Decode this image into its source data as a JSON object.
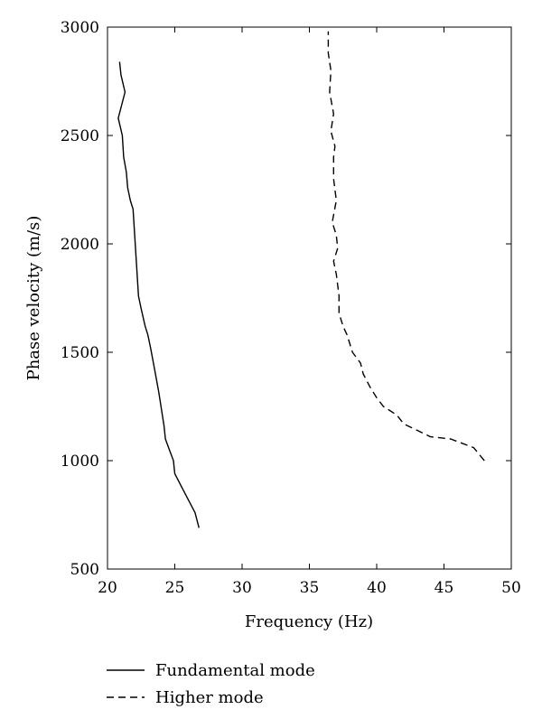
{
  "chart_data": {
    "type": "line",
    "title": "",
    "xlabel": "Frequency (Hz)",
    "ylabel": "Phase velocity (m/s)",
    "xlim": [
      20,
      50
    ],
    "ylim": [
      500,
      3000
    ],
    "xticks": [
      "20",
      "25",
      "30",
      "35",
      "40",
      "45",
      "50"
    ],
    "yticks": [
      "500",
      "1000",
      "1500",
      "2000",
      "2500",
      "3000"
    ],
    "grid": false,
    "legend_position": "bottom",
    "series": [
      {
        "name": "Fundamental mode",
        "style": "solid",
        "color": "#000000",
        "points": [
          [
            26.8,
            690
          ],
          [
            26.5,
            760
          ],
          [
            26.0,
            820
          ],
          [
            25.5,
            880
          ],
          [
            25.0,
            940
          ],
          [
            24.9,
            1000
          ],
          [
            24.6,
            1050
          ],
          [
            24.3,
            1100
          ],
          [
            24.2,
            1160
          ],
          [
            24.0,
            1240
          ],
          [
            23.8,
            1320
          ],
          [
            23.5,
            1420
          ],
          [
            23.2,
            1520
          ],
          [
            23.0,
            1580
          ],
          [
            22.8,
            1620
          ],
          [
            22.5,
            1700
          ],
          [
            22.3,
            1760
          ],
          [
            22.2,
            1860
          ],
          [
            22.1,
            1960
          ],
          [
            22.0,
            2060
          ],
          [
            21.9,
            2160
          ],
          [
            21.7,
            2200
          ],
          [
            21.5,
            2260
          ],
          [
            21.4,
            2330
          ],
          [
            21.2,
            2400
          ],
          [
            21.1,
            2500
          ],
          [
            20.8,
            2580
          ],
          [
            21.3,
            2700
          ],
          [
            21.0,
            2780
          ],
          [
            20.9,
            2840
          ]
        ]
      },
      {
        "name": "Higher mode",
        "style": "dashed",
        "color": "#000000",
        "points": [
          [
            48.0,
            1000
          ],
          [
            47.2,
            1060
          ],
          [
            45.5,
            1100
          ],
          [
            44.0,
            1110
          ],
          [
            43.0,
            1140
          ],
          [
            42.0,
            1170
          ],
          [
            41.5,
            1210
          ],
          [
            40.5,
            1250
          ],
          [
            40.0,
            1290
          ],
          [
            39.5,
            1340
          ],
          [
            39.0,
            1400
          ],
          [
            38.8,
            1450
          ],
          [
            38.2,
            1500
          ],
          [
            37.8,
            1580
          ],
          [
            37.5,
            1620
          ],
          [
            37.2,
            1680
          ],
          [
            37.2,
            1760
          ],
          [
            37.0,
            1860
          ],
          [
            36.8,
            1920
          ],
          [
            37.1,
            1980
          ],
          [
            37.0,
            2040
          ],
          [
            36.7,
            2100
          ],
          [
            37.0,
            2200
          ],
          [
            36.8,
            2300
          ],
          [
            36.8,
            2400
          ],
          [
            36.9,
            2450
          ],
          [
            36.6,
            2520
          ],
          [
            36.8,
            2600
          ],
          [
            36.5,
            2700
          ],
          [
            36.6,
            2800
          ],
          [
            36.4,
            2880
          ],
          [
            36.4,
            2980
          ]
        ]
      }
    ]
  }
}
